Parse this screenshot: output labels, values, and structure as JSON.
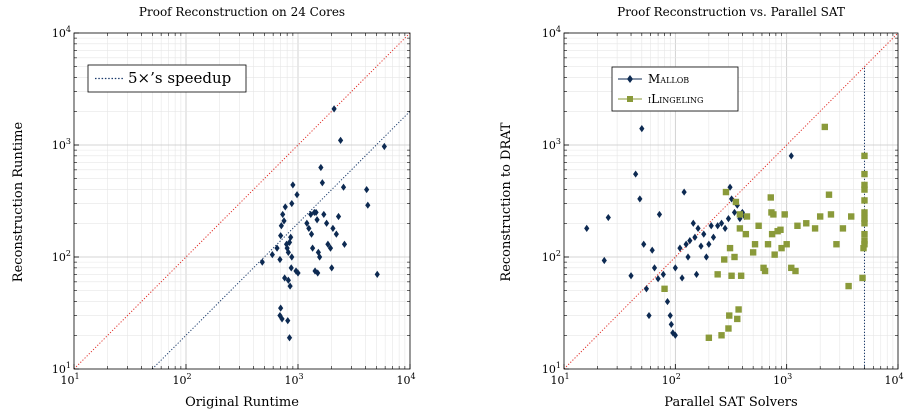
{
  "chart_data": [
    {
      "type": "scatter",
      "title": "Proof Reconstruction on 24 Cores",
      "xlabel": "Original Runtime",
      "ylabel": "Reconstruction Runtime",
      "xscale": "log",
      "yscale": "log",
      "xlim": [
        10,
        10000
      ],
      "ylim": [
        10,
        10000
      ],
      "grid": true,
      "legend_position": "top-left",
      "ticks": {
        "x": [
          {
            "base": "10",
            "exp": "1"
          },
          {
            "base": "10",
            "exp": "2"
          },
          {
            "base": "10",
            "exp": "3"
          },
          {
            "base": "10",
            "exp": "4"
          }
        ],
        "y": [
          {
            "base": "10",
            "exp": "1"
          },
          {
            "base": "10",
            "exp": "2"
          },
          {
            "base": "10",
            "exp": "3"
          },
          {
            "base": "10",
            "exp": "4"
          }
        ]
      },
      "reference_lines": [
        {
          "kind": "diagonal",
          "label": "",
          "color": "#e0302a",
          "style": "dotted",
          "points": [
            [
              10,
              10
            ],
            [
              10000,
              10000
            ]
          ]
        },
        {
          "kind": "speedup",
          "label": "5×’s speedup",
          "color": "#1a3a6b",
          "style": "dotted",
          "points": [
            [
              50,
              10
            ],
            [
              10000,
              2000
            ]
          ]
        }
      ],
      "series": [
        {
          "color": "#0d2a52",
          "marker": "diamond",
          "points": [
            [
              480,
              90
            ],
            [
              590,
              105
            ],
            [
              650,
              120
            ],
            [
              690,
              95
            ],
            [
              700,
              155
            ],
            [
              710,
              190
            ],
            [
              730,
              240
            ],
            [
              750,
              210
            ],
            [
              770,
              280
            ],
            [
              790,
              130
            ],
            [
              800,
              120
            ],
            [
              820,
              110
            ],
            [
              840,
              135
            ],
            [
              860,
              150
            ],
            [
              880,
              300
            ],
            [
              900,
              440
            ],
            [
              880,
              100
            ],
            [
              870,
              80
            ],
            [
              760,
              65
            ],
            [
              820,
              62
            ],
            [
              850,
              55
            ],
            [
              700,
              35
            ],
            [
              690,
              30
            ],
            [
              720,
              28
            ],
            [
              810,
              27
            ],
            [
              840,
              19
            ],
            [
              960,
              75
            ],
            [
              1000,
              72
            ],
            [
              980,
              360
            ],
            [
              1200,
              200
            ],
            [
              1250,
              180
            ],
            [
              1300,
              240
            ],
            [
              1320,
              160
            ],
            [
              1350,
              120
            ],
            [
              1400,
              250
            ],
            [
              1450,
              250
            ],
            [
              1480,
              215
            ],
            [
              1420,
              75
            ],
            [
              1500,
              72
            ],
            [
              1520,
              110
            ],
            [
              1560,
              100
            ],
            [
              1600,
              630
            ],
            [
              1650,
              460
            ],
            [
              1700,
              240
            ],
            [
              1800,
              200
            ],
            [
              1850,
              130
            ],
            [
              1950,
              120
            ],
            [
              2000,
              80
            ],
            [
              2050,
              180
            ],
            [
              2100,
              2100
            ],
            [
              2200,
              160
            ],
            [
              2300,
              230
            ],
            [
              2400,
              1100
            ],
            [
              2550,
              420
            ],
            [
              2600,
              130
            ],
            [
              4100,
              400
            ],
            [
              4200,
              290
            ],
            [
              5100,
              70
            ],
            [
              5900,
              970
            ]
          ]
        }
      ]
    },
    {
      "type": "scatter",
      "title": "Proof Reconstruction vs. Parallel SAT",
      "xlabel": "Parallel SAT Solvers",
      "ylabel": "Reconstruction to DRAT",
      "xscale": "log",
      "yscale": "log",
      "xlim": [
        10,
        10000
      ],
      "ylim": [
        10,
        10000
      ],
      "grid": true,
      "legend_position": "top-left",
      "ticks": {
        "x": [
          {
            "base": "10",
            "exp": "1"
          },
          {
            "base": "10",
            "exp": "2"
          },
          {
            "base": "10",
            "exp": "3"
          },
          {
            "base": "10",
            "exp": "4"
          }
        ],
        "y": [
          {
            "base": "10",
            "exp": "1"
          },
          {
            "base": "10",
            "exp": "2"
          },
          {
            "base": "10",
            "exp": "3"
          },
          {
            "base": "10",
            "exp": "4"
          }
        ]
      },
      "reference_lines": [
        {
          "kind": "diagonal",
          "label": "",
          "color": "#e0302a",
          "style": "dotted",
          "points": [
            [
              10,
              10
            ],
            [
              10000,
              10000
            ]
          ]
        },
        {
          "kind": "vertical",
          "label": "",
          "color": "#1a3a6b",
          "style": "dotted",
          "points": [
            [
              5000,
              10
            ],
            [
              5000,
              5000
            ]
          ]
        }
      ],
      "series": [
        {
          "name": "Mallob",
          "color": "#0d2a52",
          "marker": "diamond",
          "points": [
            [
              16,
              180
            ],
            [
              23,
              93
            ],
            [
              25,
              225
            ],
            [
              40,
              68
            ],
            [
              44,
              550
            ],
            [
              48,
              330
            ],
            [
              50,
              1400
            ],
            [
              52,
              130
            ],
            [
              55,
              52
            ],
            [
              58,
              30
            ],
            [
              62,
              115
            ],
            [
              65,
              80
            ],
            [
              70,
              64
            ],
            [
              72,
              240
            ],
            [
              78,
              70
            ],
            [
              85,
              40
            ],
            [
              90,
              30
            ],
            [
              92,
              25
            ],
            [
              95,
              21
            ],
            [
              100,
              20
            ],
            [
              100,
              80
            ],
            [
              110,
              120
            ],
            [
              115,
              65
            ],
            [
              120,
              380
            ],
            [
              125,
              130
            ],
            [
              130,
              100
            ],
            [
              135,
              140
            ],
            [
              145,
              200
            ],
            [
              150,
              150
            ],
            [
              155,
              70
            ],
            [
              160,
              180
            ],
            [
              170,
              125
            ],
            [
              180,
              160
            ],
            [
              190,
              100
            ],
            [
              200,
              130
            ],
            [
              210,
              190
            ],
            [
              220,
              150
            ],
            [
              240,
              190
            ],
            [
              260,
              200
            ],
            [
              280,
              180
            ],
            [
              300,
              220
            ],
            [
              310,
              420
            ],
            [
              320,
              330
            ],
            [
              340,
              250
            ],
            [
              360,
              290
            ],
            [
              380,
              220
            ],
            [
              400,
              250
            ],
            [
              420,
              230
            ],
            [
              1100,
              800
            ]
          ]
        },
        {
          "name": "iLingeling",
          "color": "#8a9a3a",
          "marker": "square",
          "points": [
            [
              80,
              52
            ],
            [
              200,
              19
            ],
            [
              240,
              70
            ],
            [
              260,
              20
            ],
            [
              275,
              95
            ],
            [
              285,
              380
            ],
            [
              300,
              23
            ],
            [
              305,
              30
            ],
            [
              310,
              120
            ],
            [
              320,
              68
            ],
            [
              340,
              100
            ],
            [
              350,
              310
            ],
            [
              360,
              28
            ],
            [
              370,
              34
            ],
            [
              380,
              240
            ],
            [
              380,
              180
            ],
            [
              390,
              68
            ],
            [
              430,
              160
            ],
            [
              440,
              230
            ],
            [
              500,
              110
            ],
            [
              520,
              130
            ],
            [
              560,
              190
            ],
            [
              620,
              80
            ],
            [
              640,
              75
            ],
            [
              680,
              130
            ],
            [
              720,
              340
            ],
            [
              730,
              250
            ],
            [
              740,
              160
            ],
            [
              760,
              240
            ],
            [
              780,
              105
            ],
            [
              830,
              170
            ],
            [
              880,
              175
            ],
            [
              900,
              120
            ],
            [
              960,
              240
            ],
            [
              1000,
              130
            ],
            [
              1100,
              80
            ],
            [
              1200,
              75
            ],
            [
              1250,
              190
            ],
            [
              1500,
              200
            ],
            [
              1800,
              180
            ],
            [
              2000,
              230
            ],
            [
              2200,
              1450
            ],
            [
              2400,
              360
            ],
            [
              2500,
              240
            ],
            [
              2800,
              130
            ],
            [
              3200,
              180
            ],
            [
              3600,
              55
            ],
            [
              3800,
              230
            ],
            [
              4800,
              65
            ],
            [
              4900,
              120
            ],
            [
              5000,
              130
            ],
            [
              5000,
              140
            ],
            [
              5000,
              160
            ],
            [
              5000,
              200
            ],
            [
              5000,
              220
            ],
            [
              5000,
              250
            ],
            [
              5000,
              320
            ],
            [
              5000,
              400
            ],
            [
              5000,
              440
            ],
            [
              5000,
              550
            ],
            [
              5000,
              800
            ]
          ]
        }
      ]
    }
  ]
}
